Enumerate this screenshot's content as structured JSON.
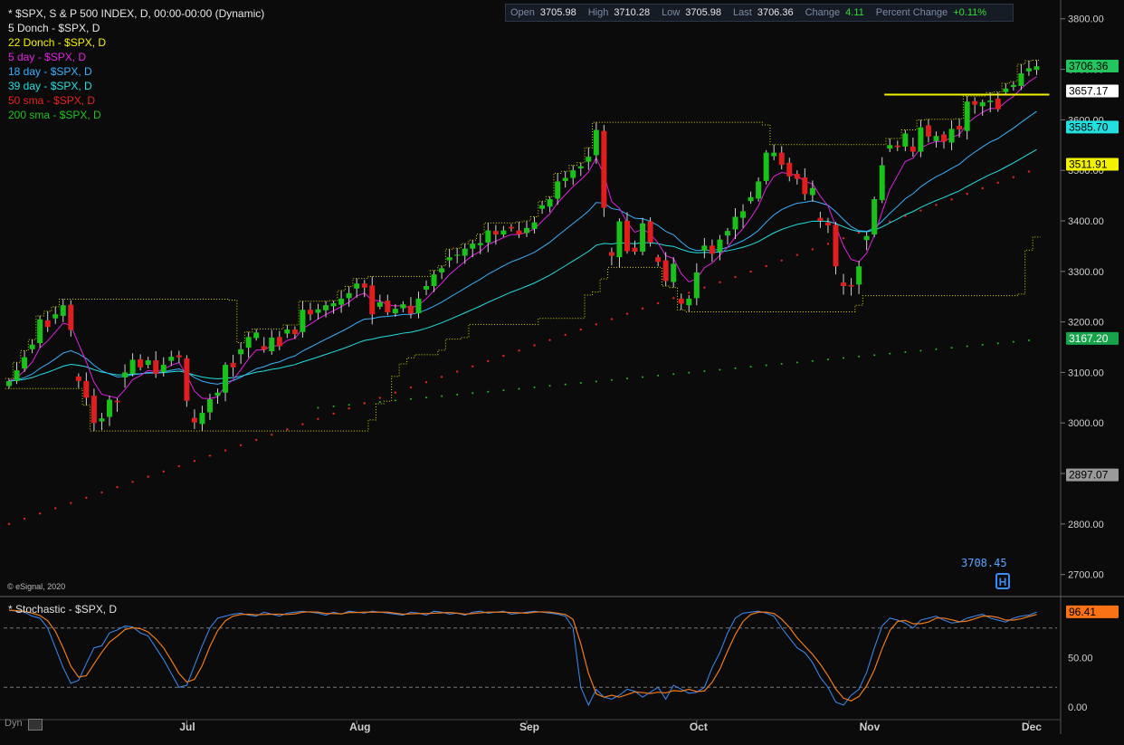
{
  "header": {
    "title": "* $SPX, S & P 500 INDEX, D, 00:00-00:00 (Dynamic)",
    "studies": [
      {
        "label": "5 Donch - $SPX, D",
        "color": "#e6e6e6"
      },
      {
        "label": "22 Donch - $SPX, D",
        "color": "#f2f200"
      },
      {
        "label": "5 day - $SPX, D",
        "color": "#e022e0"
      },
      {
        "label": "18 day - $SPX, D",
        "color": "#3ab0ff"
      },
      {
        "label": "39 day - $SPX, D",
        "color": "#22e0e0"
      },
      {
        "label": "50 sma - $SPX, D",
        "color": "#e62222"
      },
      {
        "label": "200 sma - $SPX, D",
        "color": "#22c022"
      }
    ]
  },
  "quote": {
    "open_label": "Open",
    "open": "3705.98",
    "high_label": "High",
    "high": "3710.28",
    "low_label": "Low",
    "low": "3705.98",
    "last_label": "Last",
    "last": "3706.36",
    "change_label": "Change",
    "change": "4.11",
    "pct_label": "Percent Change",
    "pct": "+0.11%"
  },
  "price_tags": [
    {
      "text": "3706.36",
      "value": 3706.36,
      "bg": "#22c55e",
      "fg": "#000000"
    },
    {
      "text": "3657.17",
      "value": 3657.17,
      "bg": "#ffffff",
      "fg": "#000000"
    },
    {
      "text": "3585.70",
      "value": 3585.7,
      "bg": "#22e0e0",
      "fg": "#000000"
    },
    {
      "text": "3511.91",
      "value": 3511.91,
      "bg": "#f2f200",
      "fg": "#000000"
    },
    {
      "text": "3167.20",
      "value": 3167.2,
      "bg": "#16a34a",
      "fg": "#ffffff"
    },
    {
      "text": "2897.07",
      "value": 2897.07,
      "bg": "#9a9a9a",
      "fg": "#000000"
    }
  ],
  "stochastic": {
    "label": "* Stochastic - $SPX, D",
    "tag": {
      "text": "96.41",
      "value": 96.41,
      "bg": "#f97316",
      "fg": "#000000"
    },
    "levels": [
      80,
      20
    ]
  },
  "credit": "© eSignal, 2020",
  "dyn_label": "Dyn",
  "high_marker": {
    "text": "3708.45",
    "icon": "H"
  },
  "resistance_value": 3650,
  "chart_data": {
    "type": "candlestick",
    "y_ticks": [
      "2700.00",
      "2800.00",
      "2900.00",
      "3000.00",
      "3100.00",
      "3200.00",
      "3300.00",
      "3400.00",
      "3500.00",
      "3600.00",
      "3700.00",
      "3800.00"
    ],
    "ylim": [
      2660,
      3830
    ],
    "x_months": [
      {
        "label": "Jul",
        "x": 23
      },
      {
        "label": "Aug",
        "x": 45
      },
      {
        "label": "Sep",
        "x": 67
      },
      {
        "label": "Oct",
        "x": 89
      },
      {
        "label": "Nov",
        "x": 111
      },
      {
        "label": "Dec",
        "x": 132
      }
    ],
    "stoch_ticks": [
      "0.00",
      "50.00"
    ],
    "stoch_ylim": [
      -10,
      110
    ],
    "closes": [
      3083,
      3104,
      3130,
      3155,
      3205,
      3190,
      3215,
      3233,
      3184,
      3083,
      3050,
      3000,
      3009,
      3046,
      3041,
      3100,
      3125,
      3110,
      3124,
      3097,
      3115,
      3131,
      3130,
      3044,
      3001,
      3020,
      3047,
      3060,
      3115,
      3110,
      3146,
      3170,
      3179,
      3145,
      3169,
      3152,
      3185,
      3176,
      3224,
      3215,
      3225,
      3233,
      3237,
      3246,
      3257,
      3276,
      3268,
      3215,
      3239,
      3219,
      3226,
      3235,
      3216,
      3246,
      3271,
      3294,
      3306,
      3328,
      3333,
      3345,
      3355,
      3356,
      3381,
      3373,
      3381,
      3385,
      3373,
      3386,
      3397,
      3431,
      3443,
      3478,
      3485,
      3500,
      3508,
      3527,
      3580,
      3426,
      3331,
      3399,
      3340,
      3339,
      3395,
      3357,
      3319,
      3281,
      3315,
      3236,
      3246,
      3298,
      3351,
      3335,
      3363,
      3380,
      3408,
      3419,
      3447,
      3478,
      3535,
      3535,
      3511,
      3488,
      3483,
      3453,
      3465,
      3400,
      3391,
      3310,
      3271,
      3270,
      3310,
      3370,
      3443,
      3510,
      3550,
      3546,
      3573,
      3537,
      3585,
      3567,
      3568,
      3557,
      3582,
      3581,
      3636,
      3630,
      3635,
      3638,
      3621,
      3662,
      3669,
      3692,
      3702,
      3706
    ],
    "stochastic_k": [
      98,
      97,
      96,
      92,
      90,
      80,
      60,
      40,
      24,
      27,
      44,
      60,
      62,
      75,
      78,
      82,
      81,
      75,
      72,
      60,
      48,
      34,
      20,
      22,
      42,
      62,
      80,
      90,
      92,
      94,
      95,
      93,
      92,
      96,
      94,
      92,
      95,
      96,
      97,
      96,
      95,
      93,
      96,
      94,
      97,
      96,
      95,
      97,
      96,
      95,
      94,
      93,
      96,
      95,
      93,
      97,
      96,
      94,
      95,
      93,
      96,
      97,
      95,
      96,
      97,
      94,
      95,
      96,
      97,
      96,
      95,
      94,
      92,
      80,
      20,
      2,
      18,
      10,
      8,
      12,
      18,
      16,
      10,
      15,
      20,
      8,
      22,
      18,
      14,
      15,
      20,
      40,
      55,
      75,
      90,
      95,
      96,
      97,
      95,
      92,
      80,
      70,
      60,
      55,
      45,
      30,
      20,
      5,
      2,
      12,
      18,
      35,
      60,
      82,
      90,
      88,
      85,
      80,
      88,
      90,
      92,
      88,
      85,
      86,
      90,
      92,
      94,
      90,
      88,
      86,
      90,
      92,
      93,
      96
    ]
  }
}
